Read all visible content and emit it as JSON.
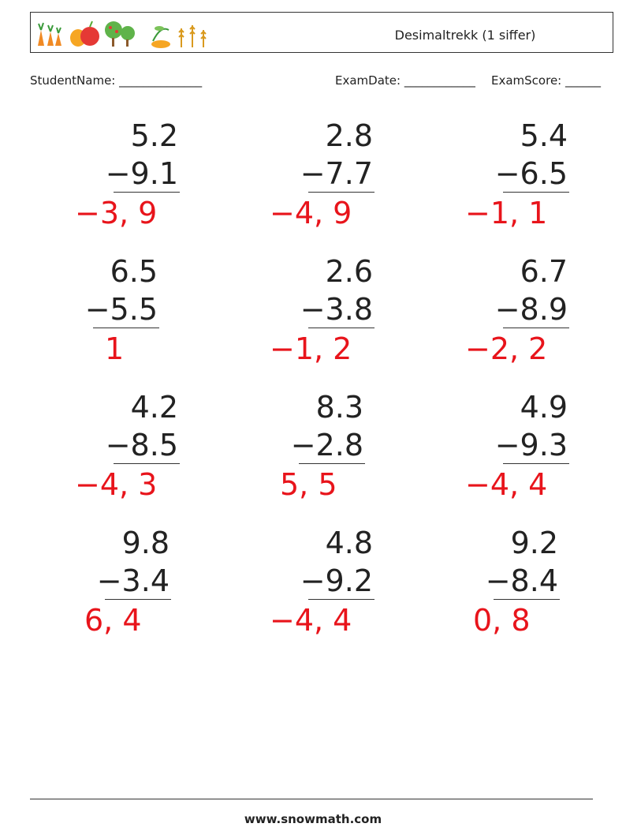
{
  "header": {
    "title": "Desimaltrekk (1 siffer)"
  },
  "fields": {
    "student_name": "StudentName: ______________",
    "exam_date": "ExamDate: ____________",
    "exam_score": "ExamScore: ______"
  },
  "problems": [
    {
      "top": "5.2",
      "bottom": "−9.1",
      "answer": "−3, 9"
    },
    {
      "top": "2.8",
      "bottom": "−7.7",
      "answer": "−4, 9"
    },
    {
      "top": "5.4",
      "bottom": "−6.5",
      "answer": "−1, 1"
    },
    {
      "top": "6.5",
      "bottom": "−5.5",
      "answer": "1"
    },
    {
      "top": "2.6",
      "bottom": "−3.8",
      "answer": "−1, 2"
    },
    {
      "top": "6.7",
      "bottom": "−8.9",
      "answer": "−2, 2"
    },
    {
      "top": "4.2",
      "bottom": "−8.5",
      "answer": "−4, 3"
    },
    {
      "top": "8.3",
      "bottom": "−2.8",
      "answer": "5, 5"
    },
    {
      "top": "4.9",
      "bottom": "−9.3",
      "answer": "−4, 4"
    },
    {
      "top": "9.8",
      "bottom": "−3.4",
      "answer": "6, 4"
    },
    {
      "top": "4.8",
      "bottom": "−9.2",
      "answer": "−4, 4"
    },
    {
      "top": "9.2",
      "bottom": "−8.4",
      "answer": "0, 8"
    }
  ],
  "footer": "www.snowmath.com"
}
